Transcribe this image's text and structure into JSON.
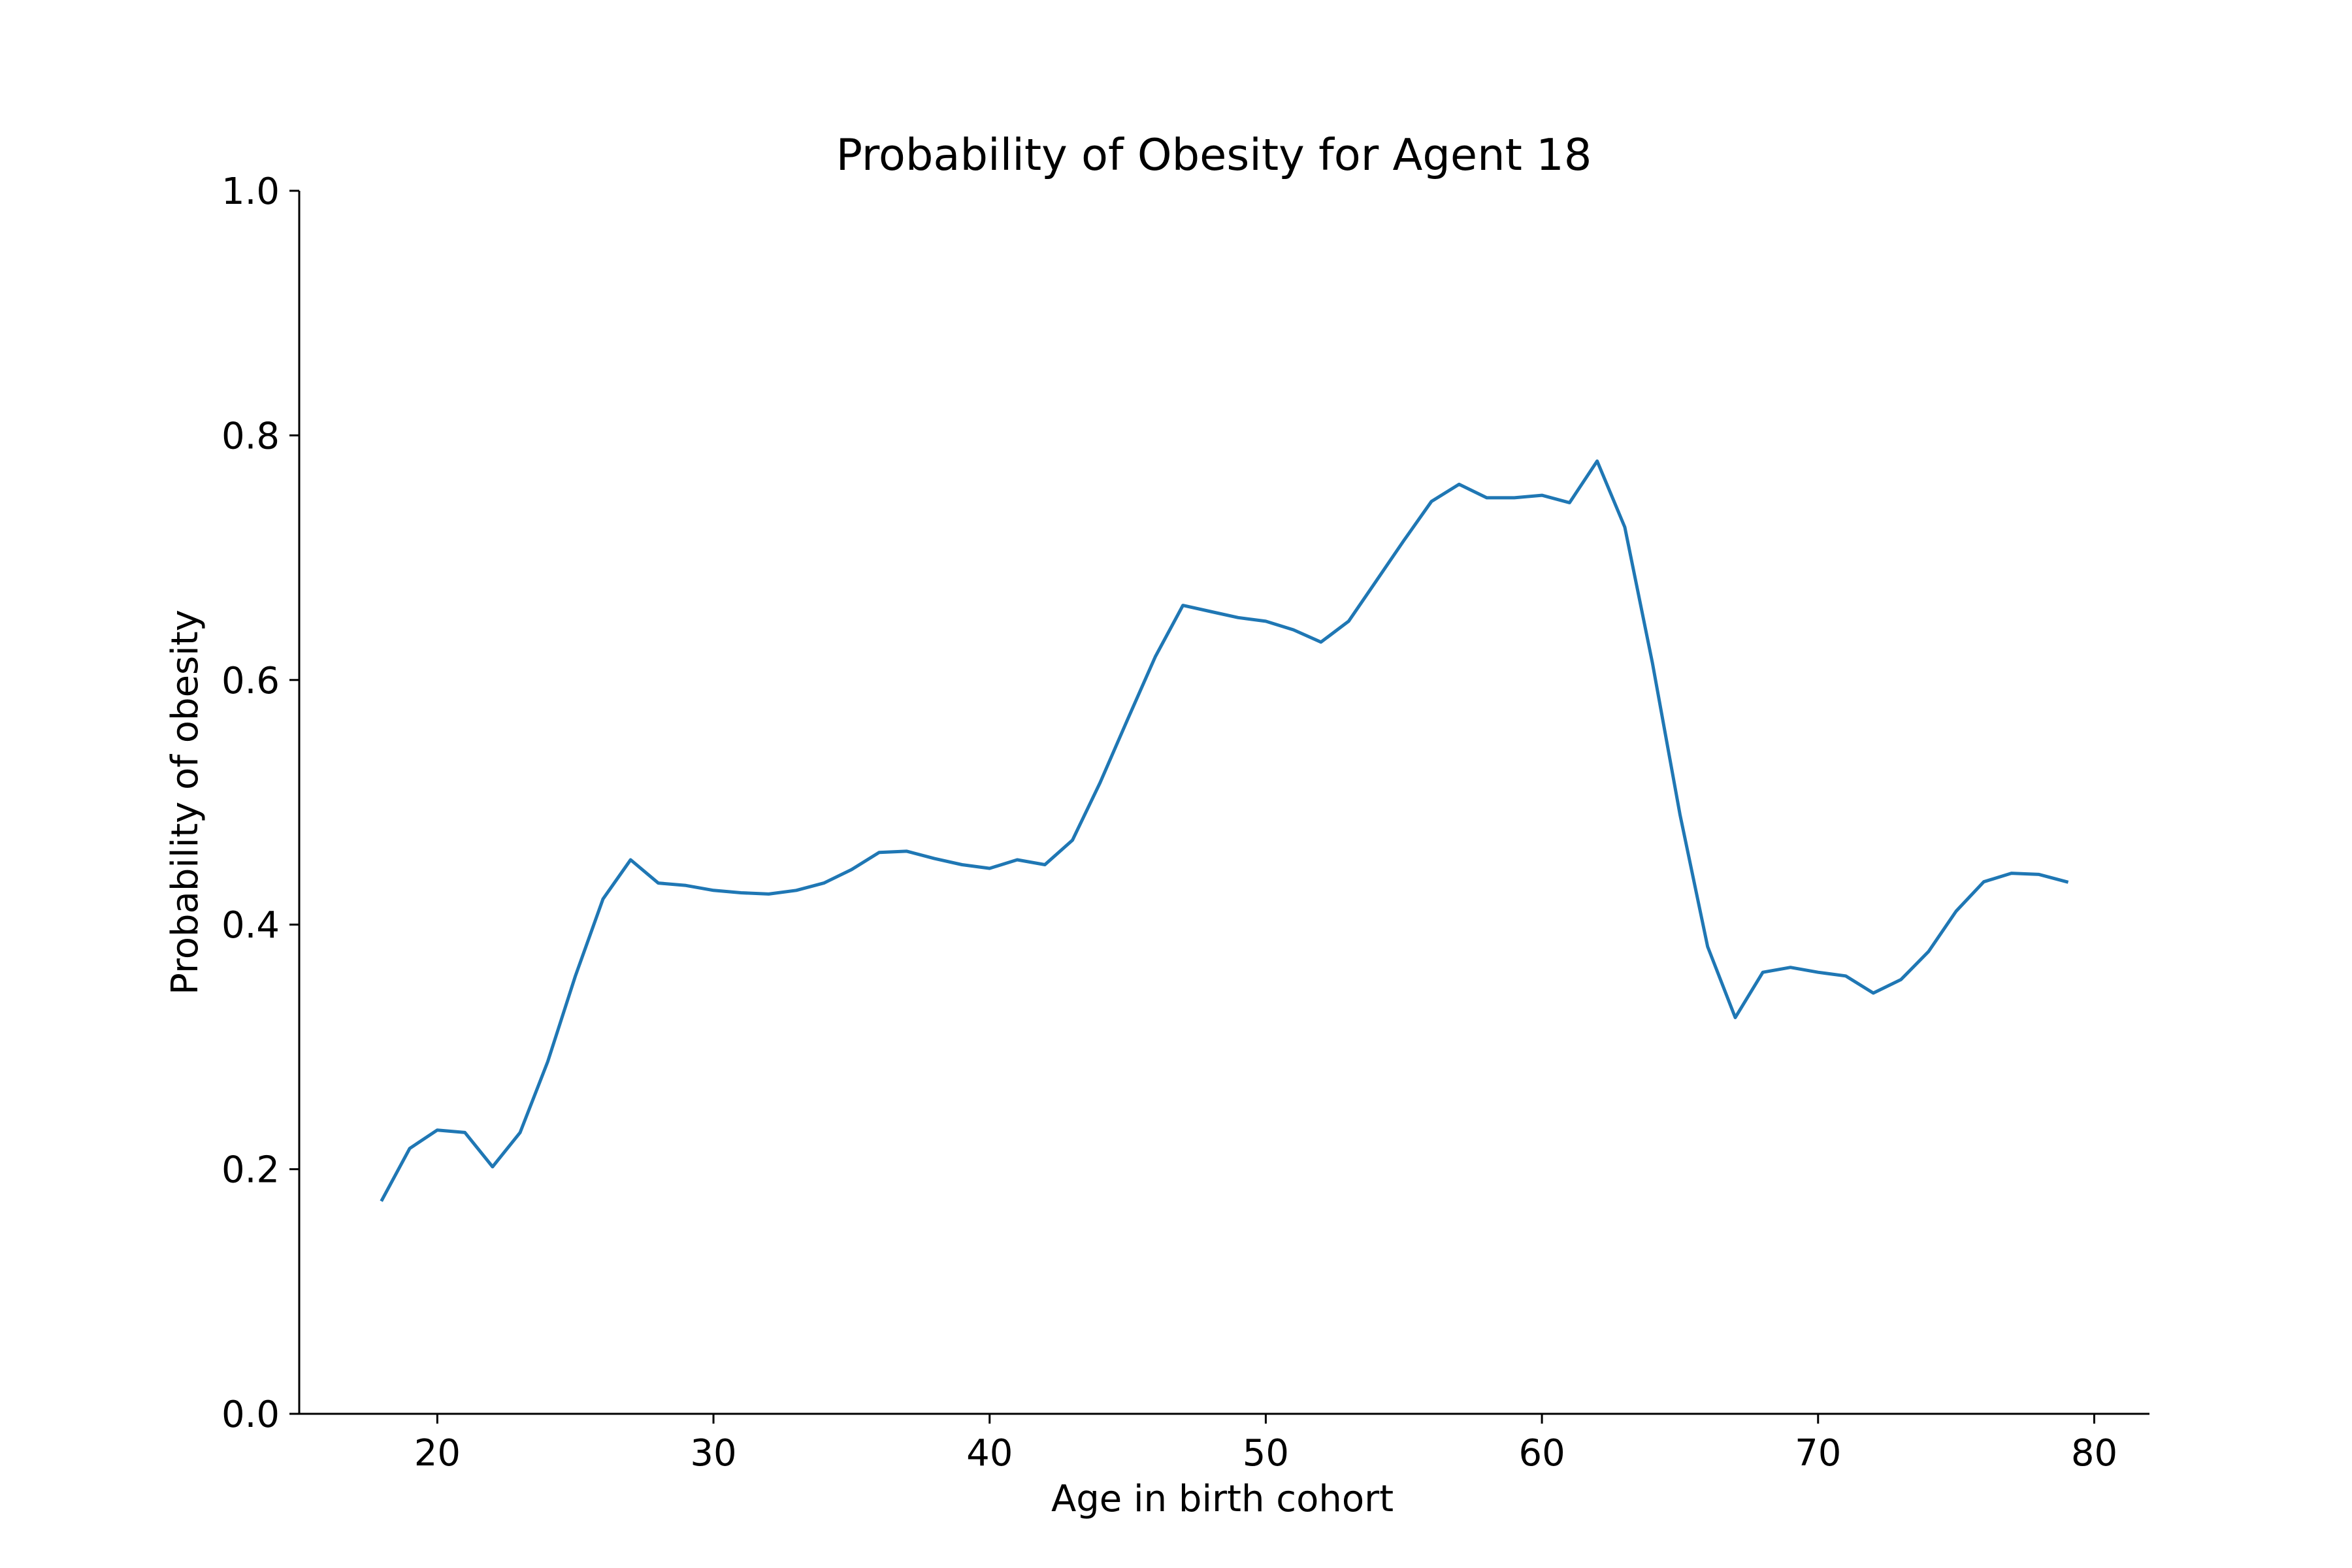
{
  "chart_data": {
    "type": "line",
    "title": "Probability of Obesity for Agent 18",
    "xlabel": "Age in birth cohort",
    "ylabel": "Probability of obesity",
    "xlim": [
      15,
      82
    ],
    "ylim": [
      0.0,
      1.0
    ],
    "xticks": [
      20,
      30,
      40,
      50,
      60,
      70,
      80
    ],
    "xtick_labels": [
      "20",
      "30",
      "40",
      "50",
      "60",
      "70",
      "80"
    ],
    "yticks": [
      0.0,
      0.2,
      0.4,
      0.6,
      0.8,
      1.0
    ],
    "ytick_labels": [
      "0.0",
      "0.2",
      "0.4",
      "0.6",
      "0.8",
      "1.0"
    ],
    "grid": false,
    "spines": [
      "left",
      "bottom"
    ],
    "series": [
      {
        "color": "#1f77b4",
        "x": [
          18,
          19,
          20,
          21,
          22,
          23,
          24,
          25,
          26,
          27,
          28,
          29,
          30,
          31,
          32,
          33,
          34,
          35,
          36,
          37,
          38,
          39,
          40,
          41,
          42,
          43,
          44,
          45,
          46,
          47,
          48,
          49,
          50,
          51,
          52,
          53,
          54,
          55,
          56,
          57,
          58,
          59,
          60,
          61,
          62,
          63,
          64,
          65,
          66,
          67,
          68,
          69,
          70,
          71,
          72,
          73,
          74,
          75,
          76,
          77,
          78,
          79
        ],
        "values": [
          0.175,
          0.217,
          0.232,
          0.23,
          0.202,
          0.23,
          0.288,
          0.358,
          0.421,
          0.453,
          0.434,
          0.432,
          0.428,
          0.426,
          0.425,
          0.428,
          0.434,
          0.445,
          0.459,
          0.46,
          0.454,
          0.449,
          0.446,
          0.453,
          0.449,
          0.469,
          0.516,
          0.568,
          0.619,
          0.661,
          0.656,
          0.651,
          0.648,
          0.641,
          0.631,
          0.648,
          0.681,
          0.714,
          0.746,
          0.76,
          0.749,
          0.749,
          0.751,
          0.745,
          0.779,
          0.725,
          0.614,
          0.49,
          0.382,
          0.324,
          0.361,
          0.365,
          0.361,
          0.358,
          0.344,
          0.355,
          0.378,
          0.411,
          0.435,
          0.442,
          0.441,
          0.435
        ]
      }
    ]
  }
}
